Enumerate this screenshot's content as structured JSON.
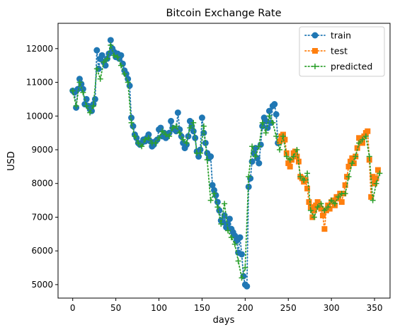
{
  "chart_data": {
    "type": "line",
    "title": "Bitcoin Exchange Rate",
    "xlabel": "days",
    "ylabel": "USD",
    "xlim": [
      -17,
      368
    ],
    "ylim": [
      4600,
      12750
    ],
    "xticks": [
      0,
      50,
      100,
      150,
      200,
      250,
      300,
      350
    ],
    "yticks": [
      5000,
      6000,
      7000,
      8000,
      9000,
      10000,
      11000,
      12000
    ],
    "grid": false,
    "legend_position": "top-right",
    "series": [
      {
        "name": "train",
        "color": "#1f77b4",
        "marker": "circle",
        "x": [
          0,
          2,
          4,
          6,
          8,
          10,
          12,
          14,
          16,
          18,
          20,
          22,
          24,
          26,
          28,
          30,
          32,
          34,
          36,
          38,
          40,
          42,
          44,
          46,
          48,
          50,
          52,
          54,
          56,
          58,
          60,
          62,
          64,
          66,
          68,
          70,
          72,
          74,
          76,
          78,
          80,
          82,
          84,
          86,
          88,
          90,
          92,
          94,
          96,
          98,
          100,
          102,
          104,
          106,
          108,
          110,
          112,
          114,
          116,
          118,
          120,
          122,
          124,
          126,
          128,
          130,
          132,
          134,
          136,
          138,
          140,
          142,
          144,
          146,
          148,
          150,
          152,
          154,
          156,
          158,
          160,
          162,
          164,
          166,
          168,
          170,
          172,
          174,
          176,
          178,
          180,
          182,
          184,
          186,
          188,
          190,
          192,
          194,
          196,
          198,
          200,
          202,
          204,
          206,
          208,
          210,
          212,
          214,
          216,
          218,
          220,
          222,
          224,
          226,
          228,
          230,
          232,
          234,
          236,
          238
        ],
        "y": [
          10750,
          10700,
          10250,
          10800,
          11100,
          10950,
          10800,
          10350,
          10500,
          10300,
          10200,
          10150,
          10350,
          10500,
          11950,
          11400,
          11700,
          11800,
          11600,
          11500,
          11700,
          11850,
          12250,
          12000,
          11900,
          11750,
          11850,
          11700,
          11800,
          11550,
          11350,
          11250,
          11100,
          10900,
          9950,
          9700,
          9450,
          9350,
          9200,
          9150,
          9200,
          9300,
          9250,
          9350,
          9450,
          9250,
          9100,
          9150,
          9250,
          9300,
          9600,
          9650,
          9400,
          9500,
          9350,
          9450,
          9500,
          9850,
          9650,
          9600,
          9550,
          10100,
          9600,
          9400,
          9200,
          9050,
          9150,
          9400,
          9850,
          9700,
          9550,
          9350,
          8950,
          8800,
          9000,
          9950,
          9500,
          9200,
          8900,
          8750,
          8800,
          7950,
          7800,
          7650,
          7450,
          7200,
          6900,
          6850,
          7050,
          6700,
          6800,
          6950,
          6650,
          6550,
          6450,
          6300,
          5950,
          6400,
          5900,
          5250,
          5000,
          4950,
          7900,
          8150,
          8650,
          8900,
          9050,
          8750,
          8600,
          9150,
          9700,
          9950,
          9850,
          9650,
          10150,
          9800,
          10300,
          10350,
          10050,
          9200
        ]
      },
      {
        "name": "test",
        "color": "#ff7f0e",
        "marker": "square",
        "x": [
          240,
          242,
          244,
          246,
          248,
          250,
          252,
          254,
          256,
          258,
          260,
          262,
          264,
          266,
          268,
          270,
          272,
          274,
          276,
          278,
          280,
          282,
          284,
          286,
          288,
          290,
          292,
          294,
          296,
          298,
          300,
          302,
          304,
          306,
          308,
          310,
          312,
          314,
          316,
          318,
          320,
          322,
          324,
          326,
          328,
          330,
          332,
          334,
          336,
          338,
          340,
          342,
          344,
          346,
          348,
          350,
          352,
          354
        ],
        "y": [
          9250,
          9400,
          9450,
          9300,
          8900,
          8600,
          8500,
          8700,
          8900,
          8950,
          8800,
          8650,
          8200,
          8150,
          8050,
          8100,
          7850,
          7450,
          7300,
          7000,
          7200,
          7350,
          7450,
          7350,
          7250,
          7050,
          6650,
          7200,
          7350,
          7250,
          7450,
          7500,
          7350,
          7600,
          7550,
          7700,
          7450,
          7700,
          7950,
          8200,
          8500,
          8650,
          8750,
          8600,
          8800,
          9050,
          9350,
          9300,
          9200,
          9400,
          9500,
          9550,
          8700,
          7600,
          8200,
          8000,
          8150,
          8400
        ]
      },
      {
        "name": "predicted",
        "color": "#2ca02c",
        "marker": "plus",
        "x": [
          0,
          4,
          8,
          12,
          16,
          20,
          24,
          28,
          32,
          36,
          40,
          44,
          48,
          52,
          56,
          60,
          64,
          68,
          72,
          76,
          80,
          84,
          88,
          92,
          96,
          100,
          104,
          108,
          112,
          116,
          120,
          124,
          128,
          132,
          136,
          140,
          144,
          148,
          152,
          156,
          160,
          164,
          168,
          172,
          176,
          180,
          184,
          188,
          192,
          196,
          200,
          204,
          208,
          212,
          216,
          220,
          224,
          228,
          232,
          236,
          240,
          244,
          248,
          252,
          256,
          260,
          264,
          268,
          272,
          276,
          280,
          284,
          288,
          292,
          296,
          300,
          304,
          308,
          312,
          316,
          320,
          324,
          328,
          332,
          336,
          340,
          344,
          348,
          352,
          356
        ],
        "y": [
          10750,
          10300,
          11000,
          10700,
          10300,
          10100,
          10300,
          11400,
          11100,
          11600,
          11700,
          12100,
          11800,
          11750,
          11500,
          11250,
          11000,
          9800,
          9400,
          9200,
          9100,
          9300,
          9350,
          9200,
          9200,
          9350,
          9550,
          9450,
          9400,
          9650,
          9700,
          9500,
          9300,
          9200,
          9650,
          9800,
          8900,
          8900,
          9700,
          8700,
          7500,
          7700,
          7300,
          6800,
          7400,
          6600,
          6400,
          6200,
          5700,
          5200,
          5500,
          8200,
          9100,
          8800,
          9100,
          9800,
          9500,
          10000,
          9800,
          9400,
          9000,
          9400,
          8800,
          8700,
          8800,
          9000,
          8200,
          8100,
          8300,
          7200,
          7000,
          7300,
          7400,
          7200,
          7300,
          7500,
          7400,
          7600,
          7700,
          7700,
          8200,
          8600,
          8800,
          9200,
          9300,
          9400,
          8800,
          7500,
          8000,
          8300
        ]
      }
    ]
  }
}
